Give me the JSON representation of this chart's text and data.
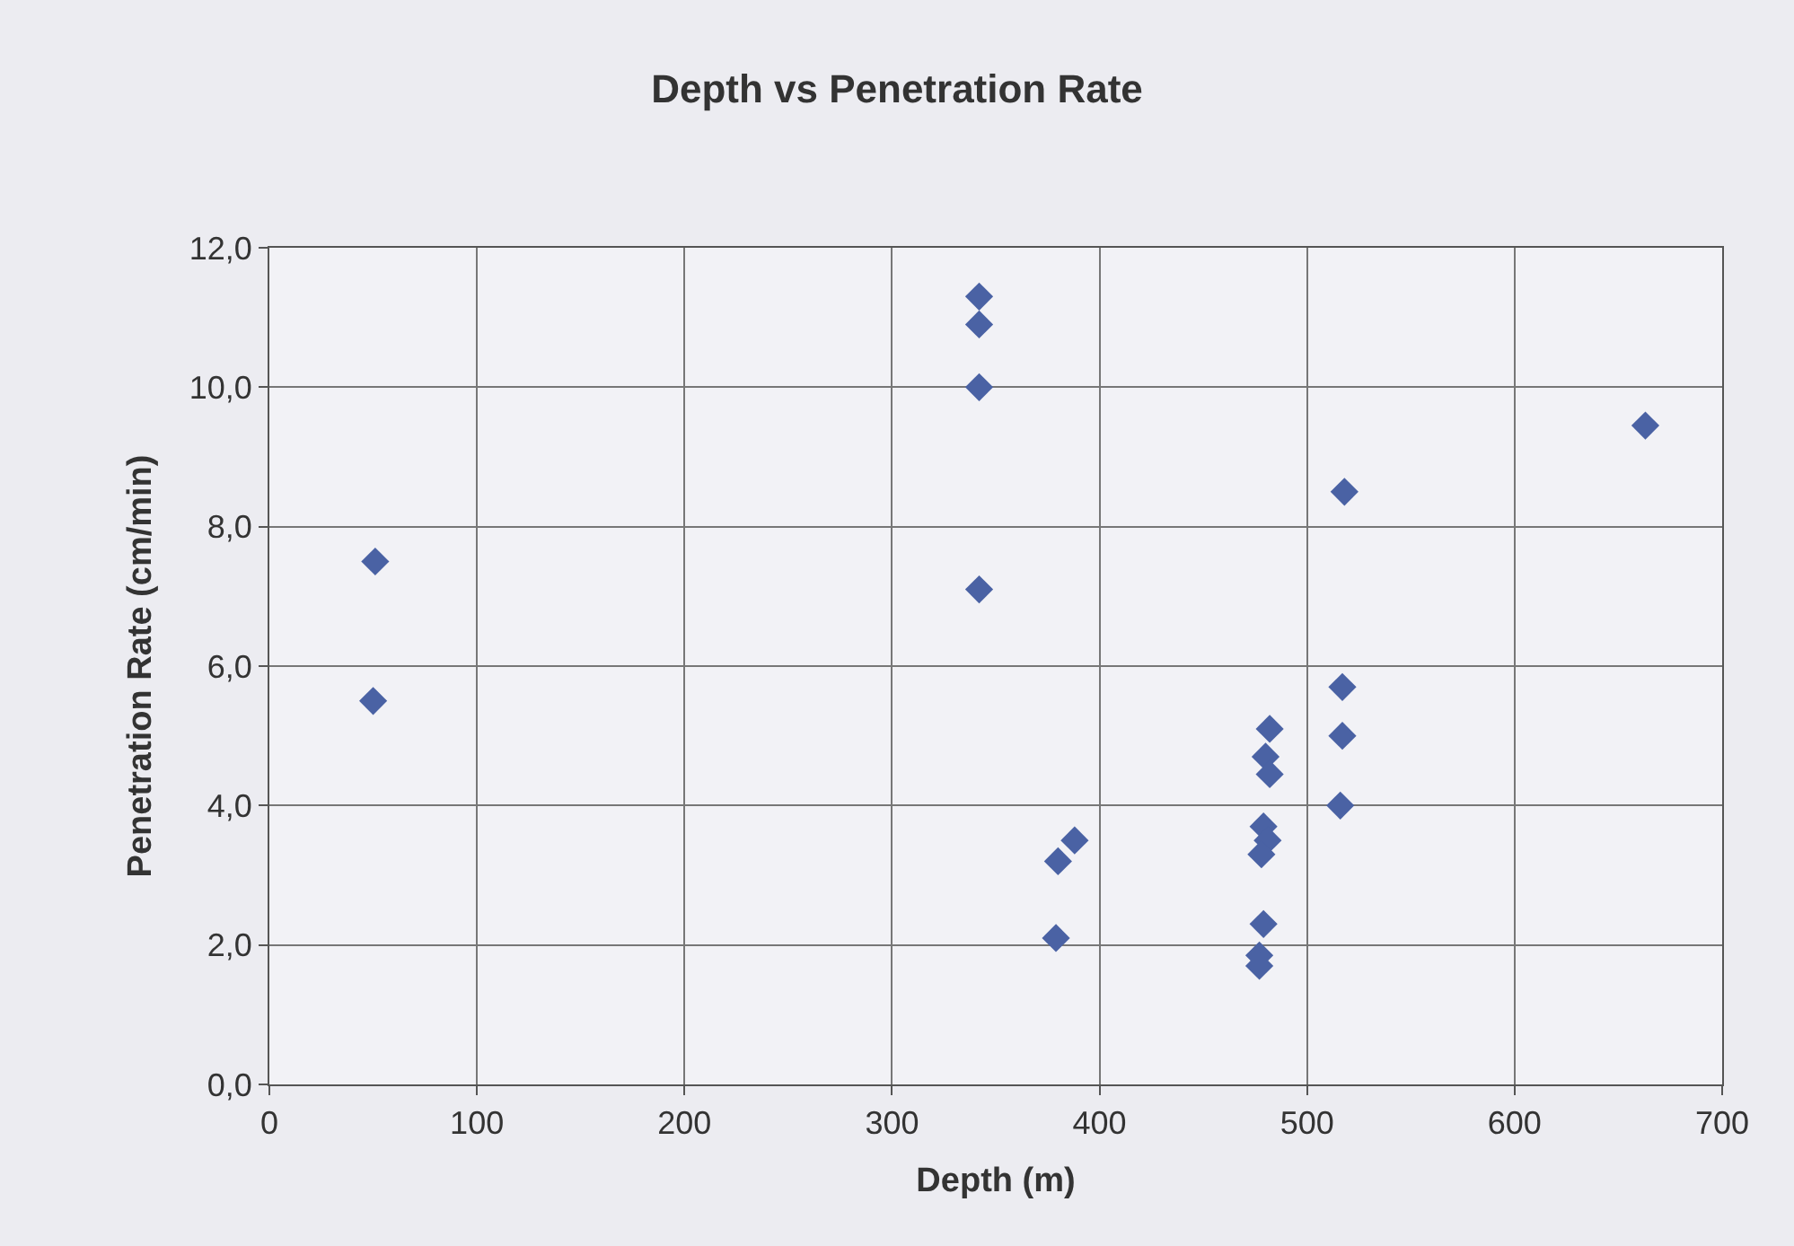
{
  "chart_data": {
    "type": "scatter",
    "title": "Depth vs Penetration Rate",
    "xlabel": "Depth (m)",
    "ylabel": "Penetration Rate (cm/min)",
    "series": [
      {
        "color": "#4a62a4",
        "x": [
          51,
          50,
          342,
          342,
          342,
          342,
          518,
          517,
          517,
          516,
          482,
          480,
          482,
          479,
          481,
          478,
          479,
          477,
          477,
          388,
          380,
          379,
          663
        ],
        "values": [
          7.5,
          5.5,
          11.3,
          10.9,
          10.0,
          7.1,
          8.5,
          5.7,
          5.0,
          4.0,
          5.1,
          4.7,
          4.45,
          3.7,
          3.5,
          3.3,
          2.3,
          1.85,
          1.7,
          3.5,
          3.2,
          2.1,
          9.45
        ]
      }
    ],
    "marker": "diamond",
    "grid": true,
    "xlim": [
      0,
      700
    ],
    "xticks": [
      0,
      100,
      200,
      300,
      400,
      500,
      600,
      700
    ],
    "ylim": [
      0,
      12
    ],
    "yticks": [
      {
        "value": 0,
        "label": "0,0"
      },
      {
        "value": 2,
        "label": "2,0"
      },
      {
        "value": 4,
        "label": "4,0"
      },
      {
        "value": 6,
        "label": "6,0"
      },
      {
        "value": 8,
        "label": "8,0"
      },
      {
        "value": 10,
        "label": "10,0"
      },
      {
        "value": 12,
        "label": "12,0"
      }
    ]
  }
}
